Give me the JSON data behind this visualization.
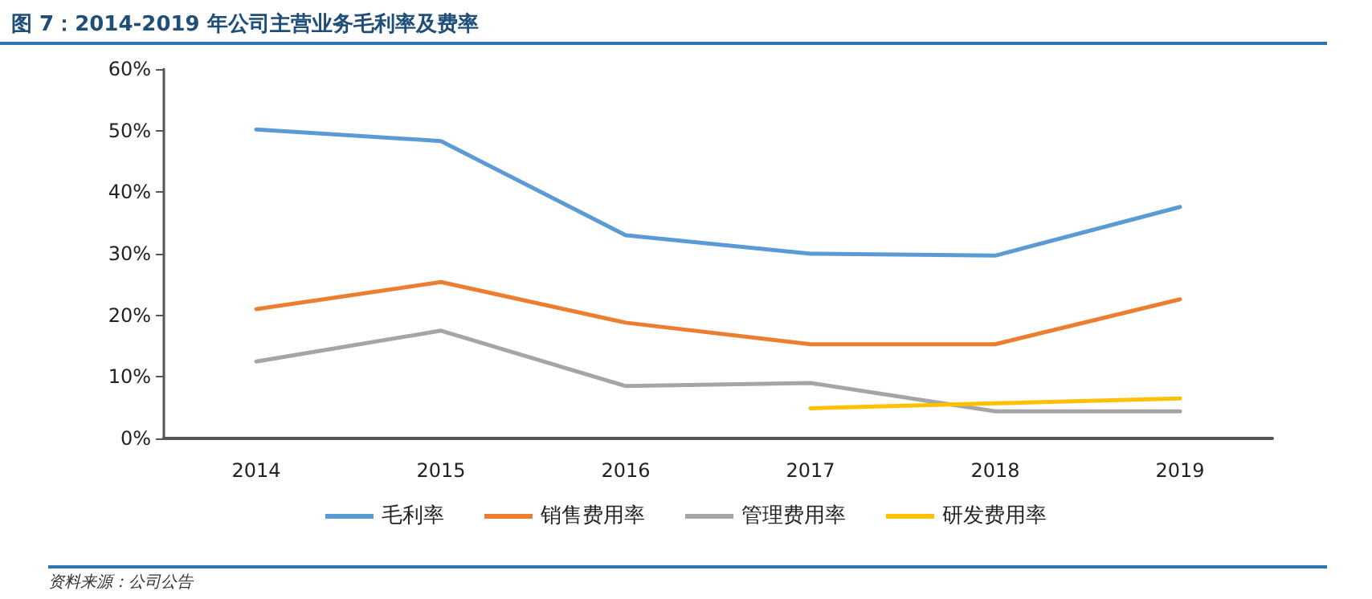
{
  "chart_data": {
    "type": "line",
    "title": "图 7：2014-2019 年公司主营业务毛利率及费率",
    "annotations": [
      "资料来源：公司公告"
    ],
    "categories": [
      "2014",
      "2015",
      "2016",
      "2017",
      "2018",
      "2019"
    ],
    "series": [
      {
        "name": "毛利率",
        "color": "#5b9bd5",
        "values": [
          50.2,
          48.3,
          33,
          30,
          29.7,
          37.6
        ]
      },
      {
        "name": "销售费用率",
        "color": "#ed7d31",
        "values": [
          21,
          25.4,
          18.8,
          15.3,
          15.3,
          22.6
        ]
      },
      {
        "name": "管理费用率",
        "color": "#a5a5a5",
        "values": [
          12.5,
          17.5,
          8.5,
          9,
          4.4,
          4.4
        ]
      },
      {
        "name": "研发费用率",
        "color": "#ffc000",
        "values": [
          null,
          null,
          null,
          4.9,
          5.7,
          6.5
        ]
      }
    ],
    "ylim": [
      0,
      60
    ],
    "yticks": [
      {
        "value": 0,
        "label": "0%"
      },
      {
        "value": 10,
        "label": "10%"
      },
      {
        "value": 20,
        "label": "20%"
      },
      {
        "value": 30,
        "label": "30%"
      },
      {
        "value": 40,
        "label": "40%"
      },
      {
        "value": 50,
        "label": "50%"
      },
      {
        "value": 60,
        "label": "60%"
      }
    ],
    "grid": false,
    "legend": "bottom",
    "marker": "none",
    "line_style": "solid"
  }
}
